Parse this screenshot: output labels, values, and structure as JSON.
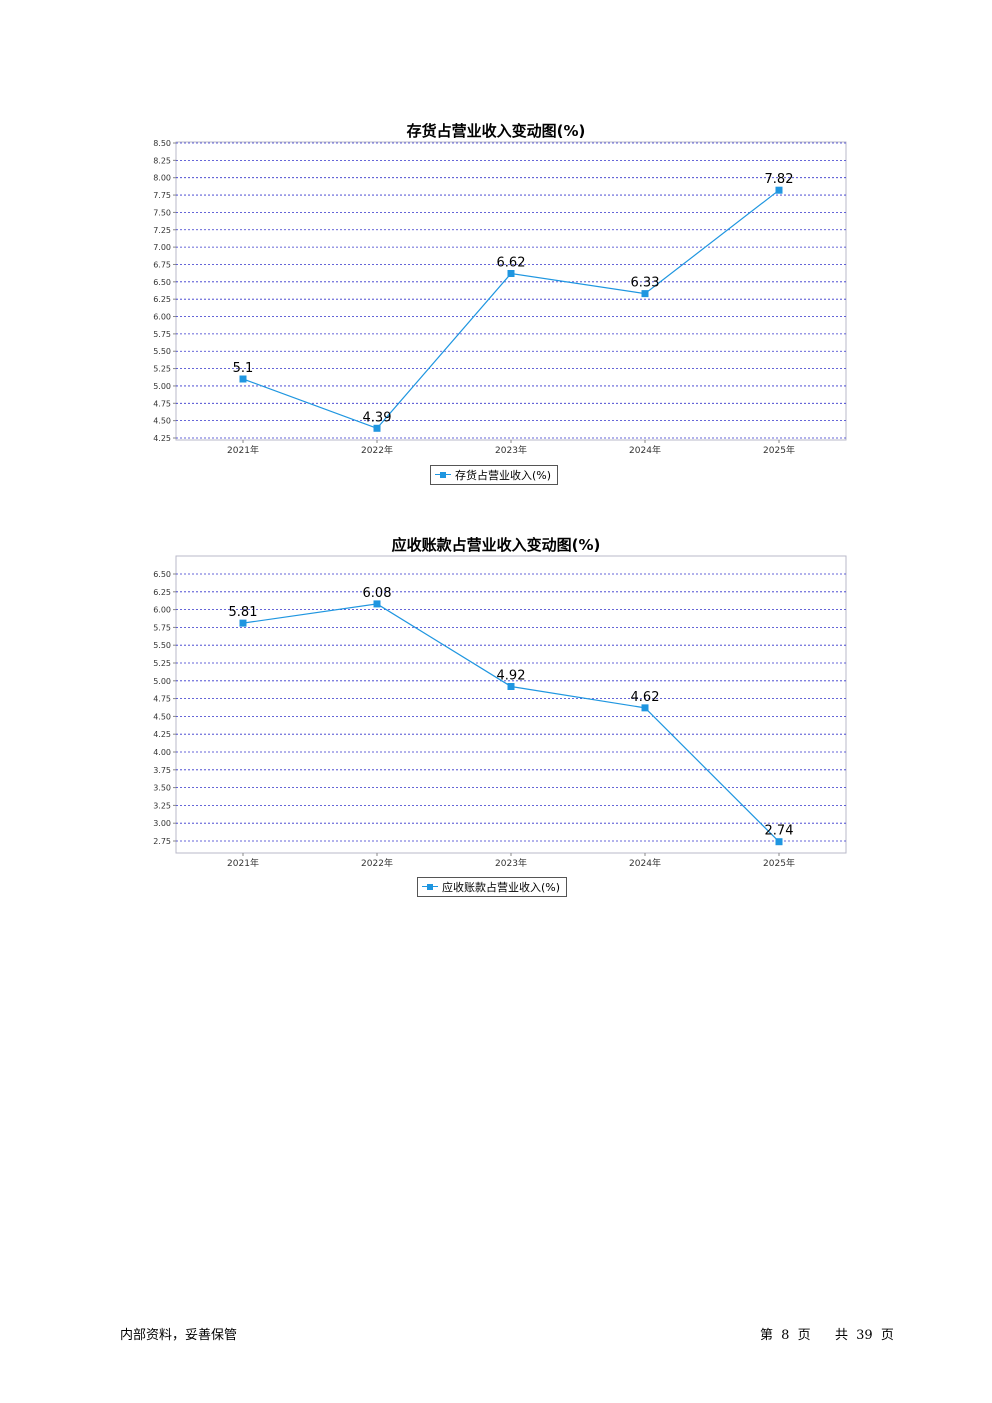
{
  "chart_data": [
    {
      "type": "line",
      "title": "存货占营业收入变动图(%)",
      "xlabel": "",
      "ylabel": "",
      "categories": [
        "2021年",
        "2022年",
        "2023年",
        "2024年",
        "2025年"
      ],
      "series": [
        {
          "name": "存货占营业收入(%)",
          "values": [
            5.1,
            4.39,
            6.62,
            6.33,
            7.82
          ],
          "data_labels": [
            "5.1",
            "4.39",
            "6.62",
            "6.33",
            "7.82"
          ]
        }
      ],
      "ylim": [
        4.25,
        8.5
      ],
      "yticks": [
        "8.50",
        "8.25",
        "8.00",
        "7.75",
        "7.50",
        "7.25",
        "7.00",
        "6.75",
        "6.50",
        "6.25",
        "6.00",
        "5.75",
        "5.50",
        "5.25",
        "5.00",
        "4.75",
        "4.50",
        "4.25"
      ],
      "grid": true,
      "legend_position": "bottom-center",
      "color": "#1f96e0"
    },
    {
      "type": "line",
      "title": "应收账款占营业收入变动图(%)",
      "xlabel": "",
      "ylabel": "",
      "categories": [
        "2021年",
        "2022年",
        "2023年",
        "2024年",
        "2025年"
      ],
      "series": [
        {
          "name": "应收账款占营业收入(%)",
          "values": [
            5.81,
            6.08,
            4.92,
            4.62,
            2.74
          ],
          "data_labels": [
            "5.81",
            "6.08",
            "4.92",
            "4.62",
            "2.74"
          ]
        }
      ],
      "ylim": [
        2.75,
        6.5
      ],
      "yticks": [
        "6.50",
        "6.25",
        "6.00",
        "5.75",
        "5.50",
        "5.25",
        "5.00",
        "4.75",
        "4.50",
        "4.25",
        "4.00",
        "3.75",
        "3.50",
        "3.25",
        "3.00",
        "2.75"
      ],
      "grid": true,
      "legend_position": "bottom-center",
      "color": "#1f96e0"
    }
  ],
  "footer": {
    "left": "内部资料，妥善保管",
    "page_label_1": "第",
    "page_current": "8",
    "page_label_2": "页",
    "page_label_3": "共",
    "page_total": "39",
    "page_label_4": "页"
  }
}
